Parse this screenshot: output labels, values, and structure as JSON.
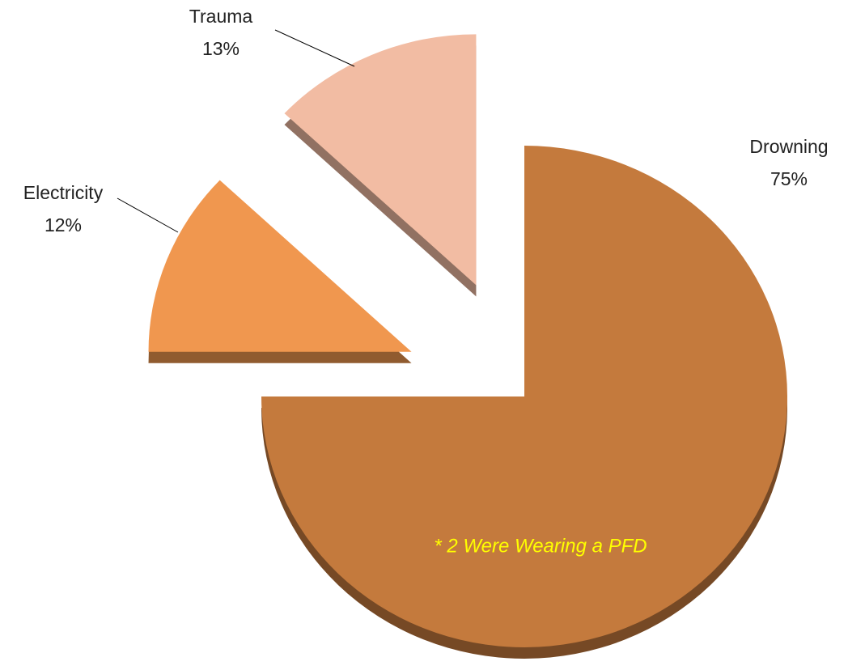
{
  "chart_data": {
    "type": "pie",
    "categories": [
      "Drowning",
      "Electricity",
      "Trauma"
    ],
    "values": [
      75,
      12,
      13
    ],
    "value_labels": [
      "75%",
      "12%",
      "13%"
    ],
    "colors": [
      "#c47a3d",
      "#f0974f",
      "#f2bca3"
    ],
    "annotation": "* 2 Were Wearing a PFD"
  }
}
